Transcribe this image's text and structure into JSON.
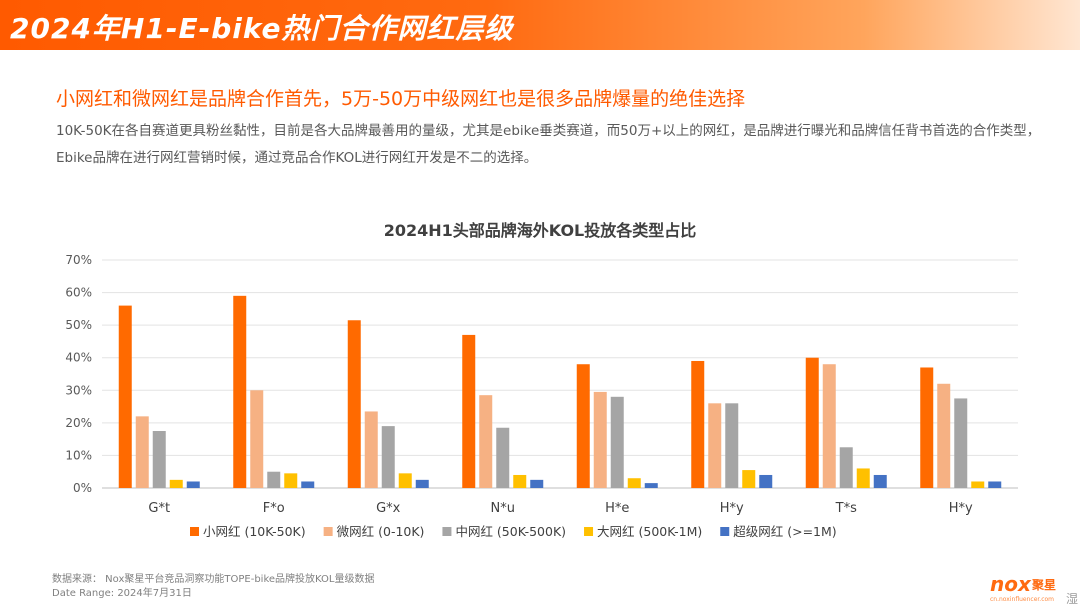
{
  "header": {
    "title": "2024年H1-E-bike热门合作网红层级"
  },
  "headline": "小网红和微网红是品牌合作首先，5万-50万中级网红也是很多品牌爆量的绝佳选择",
  "description": "10K-50K在各自赛道更具粉丝黏性，目前是各大品牌最善用的量级，尤其是ebike垂类赛道，而50万+以上的网红，是品牌进行曝光和品牌信任背书首选的合作类型，Ebike品牌在进行网红营销时候，通过竞品合作KOL进行网红开发是不二的选择。",
  "chart_data": {
    "type": "bar",
    "title": "2024H1头部品牌海外KOL投放各类型占比",
    "categories": [
      "G*t",
      "F*o",
      "G*x",
      "N*u",
      "H*e",
      "H*y",
      "T*s",
      "H*y"
    ],
    "ylim": [
      0,
      70
    ],
    "yticks": [
      "0%",
      "10%",
      "20%",
      "30%",
      "40%",
      "50%",
      "60%",
      "70%"
    ],
    "grid": true,
    "legend_position": "bottom",
    "series": [
      {
        "name": "小网红 (10K-50K)",
        "color": "#ff6a00",
        "values": [
          56,
          59,
          51.5,
          47,
          38,
          39,
          40,
          37
        ]
      },
      {
        "name": "微网红 (0-10K)",
        "color": "#f6b183",
        "values": [
          22,
          30,
          23.5,
          28.5,
          29.5,
          26,
          38,
          32
        ]
      },
      {
        "name": "中网红 (50K-500K)",
        "color": "#a5a5a5",
        "values": [
          17.5,
          5,
          19,
          18.5,
          28,
          26,
          12.5,
          27.5
        ]
      },
      {
        "name": "大网红 (500K-1M)",
        "color": "#ffc000",
        "values": [
          2.5,
          4.5,
          4.5,
          4,
          3,
          5.5,
          6,
          2
        ]
      },
      {
        "name": "超级网红 (>=1M)",
        "color": "#4472c4",
        "values": [
          2,
          2,
          2.5,
          2.5,
          1.5,
          4,
          4,
          2
        ]
      }
    ]
  },
  "footer": {
    "source": "数据来源：   Nox聚星平台竞品洞察功能TOPE-bike品牌投放KOL量级数据",
    "date_range": "Date Range:   2024年7月31日"
  },
  "logo": {
    "mark": "nox",
    "cn": "聚星",
    "url": "cn.noxinfluencer.com"
  },
  "corner_glyph": "湿"
}
